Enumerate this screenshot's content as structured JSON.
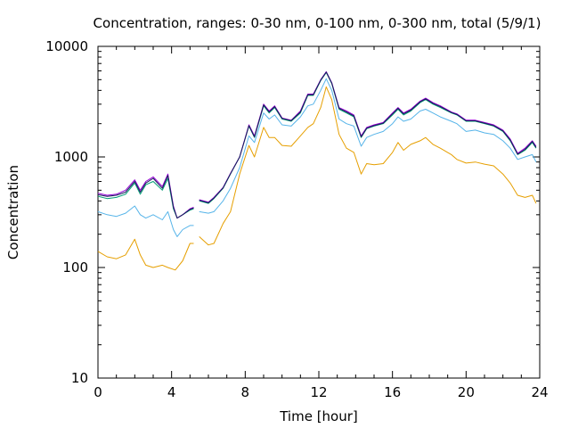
{
  "chart_data": {
    "type": "line",
    "title": "Concentration, ranges: 0-30 nm, 0-100 nm, 0-300 nm, total (5/9/1)",
    "xlabel": "Time [hour]",
    "ylabel": "Concentration",
    "xlim": [
      0,
      24
    ],
    "ylim": [
      10,
      10000
    ],
    "yscale": "log",
    "grid": false,
    "legend": "none",
    "x_ticks": [
      {
        "value": 0,
        "label": "0"
      },
      {
        "value": 4,
        "label": "4"
      },
      {
        "value": 8,
        "label": "8"
      },
      {
        "value": 12,
        "label": "12"
      },
      {
        "value": 16,
        "label": "16"
      },
      {
        "value": 20,
        "label": "20"
      },
      {
        "value": 24,
        "label": "24"
      }
    ],
    "y_ticks": [
      {
        "value": 10,
        "label": "10"
      },
      {
        "value": 100,
        "label": "100"
      },
      {
        "value": 1000,
        "label": "1000"
      },
      {
        "value": 10000,
        "label": "10000"
      }
    ],
    "series": [
      {
        "color": "#e69f00",
        "points": [
          [
            0,
            140
          ],
          [
            0.5,
            125
          ],
          [
            1,
            120
          ],
          [
            1.5,
            130
          ],
          [
            2,
            180
          ],
          [
            2.3,
            130
          ],
          [
            2.6,
            105
          ],
          [
            3,
            100
          ],
          [
            3.5,
            105
          ],
          [
            3.8,
            100
          ],
          [
            4.2,
            95
          ],
          [
            4.6,
            115
          ],
          [
            5,
            165
          ],
          [
            5.2,
            165
          ],
          [
            null,
            null
          ],
          [
            5.5,
            190
          ],
          [
            6,
            160
          ],
          [
            6.3,
            165
          ],
          [
            6.8,
            250
          ],
          [
            7.2,
            320
          ],
          [
            7.7,
            700
          ],
          [
            8.2,
            1270
          ],
          [
            8.5,
            1000
          ],
          [
            9,
            1850
          ],
          [
            9.3,
            1500
          ],
          [
            9.6,
            1500
          ],
          [
            10,
            1270
          ],
          [
            10.5,
            1250
          ],
          [
            11,
            1550
          ],
          [
            11.4,
            1850
          ],
          [
            11.7,
            2000
          ],
          [
            12.1,
            2800
          ],
          [
            12.4,
            4300
          ],
          [
            12.7,
            3300
          ],
          [
            13.1,
            1600
          ],
          [
            13.5,
            1200
          ],
          [
            13.9,
            1100
          ],
          [
            14.3,
            700
          ],
          [
            14.6,
            870
          ],
          [
            15,
            850
          ],
          [
            15.5,
            870
          ],
          [
            16,
            1100
          ],
          [
            16.3,
            1350
          ],
          [
            16.6,
            1150
          ],
          [
            17,
            1300
          ],
          [
            17.5,
            1400
          ],
          [
            17.8,
            1500
          ],
          [
            18.2,
            1300
          ],
          [
            18.6,
            1200
          ],
          [
            19.2,
            1050
          ],
          [
            19.5,
            950
          ],
          [
            20,
            880
          ],
          [
            20.5,
            900
          ],
          [
            21,
            860
          ],
          [
            21.5,
            830
          ],
          [
            22,
            700
          ],
          [
            22.4,
            580
          ],
          [
            22.8,
            450
          ],
          [
            23.2,
            430
          ],
          [
            23.6,
            450
          ],
          [
            23.8,
            380
          ]
        ]
      },
      {
        "color": "#56b4e9",
        "points": [
          [
            0,
            320
          ],
          [
            0.5,
            300
          ],
          [
            1,
            290
          ],
          [
            1.5,
            310
          ],
          [
            2,
            360
          ],
          [
            2.3,
            300
          ],
          [
            2.6,
            280
          ],
          [
            3,
            300
          ],
          [
            3.5,
            270
          ],
          [
            3.8,
            320
          ],
          [
            4.1,
            220
          ],
          [
            4.3,
            190
          ],
          [
            4.6,
            220
          ],
          [
            5,
            240
          ],
          [
            5.2,
            240
          ],
          [
            null,
            null
          ],
          [
            5.5,
            320
          ],
          [
            6,
            310
          ],
          [
            6.3,
            320
          ],
          [
            6.8,
            400
          ],
          [
            7.2,
            520
          ],
          [
            7.7,
            800
          ],
          [
            8.2,
            1550
          ],
          [
            8.5,
            1350
          ],
          [
            9,
            2500
          ],
          [
            9.3,
            2200
          ],
          [
            9.6,
            2400
          ],
          [
            10,
            1950
          ],
          [
            10.5,
            1900
          ],
          [
            11,
            2300
          ],
          [
            11.4,
            2900
          ],
          [
            11.7,
            3000
          ],
          [
            12.1,
            4000
          ],
          [
            12.4,
            5100
          ],
          [
            12.7,
            4000
          ],
          [
            13.1,
            2200
          ],
          [
            13.5,
            2000
          ],
          [
            13.9,
            1900
          ],
          [
            14.3,
            1250
          ],
          [
            14.6,
            1500
          ],
          [
            15,
            1600
          ],
          [
            15.5,
            1700
          ],
          [
            16,
            2000
          ],
          [
            16.3,
            2300
          ],
          [
            16.6,
            2100
          ],
          [
            17,
            2200
          ],
          [
            17.5,
            2600
          ],
          [
            17.8,
            2700
          ],
          [
            18.2,
            2500
          ],
          [
            18.6,
            2300
          ],
          [
            19.2,
            2100
          ],
          [
            19.5,
            2000
          ],
          [
            20,
            1700
          ],
          [
            20.5,
            1750
          ],
          [
            21,
            1650
          ],
          [
            21.5,
            1600
          ],
          [
            22,
            1400
          ],
          [
            22.4,
            1200
          ],
          [
            22.8,
            950
          ],
          [
            23.2,
            1000
          ],
          [
            23.6,
            1050
          ],
          [
            23.8,
            900
          ]
        ]
      },
      {
        "color": "#009e73",
        "points": [
          [
            0,
            440
          ],
          [
            0.5,
            420
          ],
          [
            1,
            430
          ],
          [
            1.5,
            460
          ],
          [
            2,
            580
          ],
          [
            2.3,
            460
          ],
          [
            2.6,
            560
          ],
          [
            3,
            600
          ],
          [
            3.5,
            500
          ],
          [
            3.8,
            640
          ],
          [
            4.1,
            340
          ],
          [
            4.3,
            280
          ],
          [
            4.6,
            300
          ],
          [
            5,
            330
          ],
          [
            5.2,
            340
          ],
          [
            null,
            null
          ],
          [
            5.5,
            400
          ],
          [
            6,
            380
          ],
          [
            6.3,
            420
          ],
          [
            6.8,
            520
          ],
          [
            7.2,
            700
          ],
          [
            7.7,
            1000
          ],
          [
            8.2,
            1900
          ],
          [
            8.5,
            1500
          ],
          [
            9,
            2900
          ],
          [
            9.3,
            2500
          ],
          [
            9.6,
            2800
          ],
          [
            10,
            2200
          ],
          [
            10.5,
            2100
          ],
          [
            11,
            2500
          ],
          [
            11.4,
            3600
          ],
          [
            11.7,
            3600
          ],
          [
            12.1,
            4900
          ],
          [
            12.4,
            5800
          ],
          [
            12.7,
            4600
          ],
          [
            13.1,
            2700
          ],
          [
            13.5,
            2500
          ],
          [
            13.9,
            2300
          ],
          [
            14.3,
            1500
          ],
          [
            14.6,
            1800
          ],
          [
            15,
            1900
          ],
          [
            15.5,
            2000
          ],
          [
            16,
            2400
          ],
          [
            16.3,
            2700
          ],
          [
            16.6,
            2400
          ],
          [
            17,
            2600
          ],
          [
            17.5,
            3100
          ],
          [
            17.8,
            3300
          ],
          [
            18.2,
            3000
          ],
          [
            18.6,
            2800
          ],
          [
            19.2,
            2500
          ],
          [
            19.5,
            2400
          ],
          [
            20,
            2100
          ],
          [
            20.5,
            2100
          ],
          [
            21,
            2000
          ],
          [
            21.5,
            1900
          ],
          [
            22,
            1700
          ],
          [
            22.4,
            1400
          ],
          [
            22.8,
            1050
          ],
          [
            23.2,
            1150
          ],
          [
            23.6,
            1350
          ],
          [
            23.8,
            1200
          ]
        ]
      },
      {
        "color": "#9400d3",
        "points": [
          [
            0,
            470
          ],
          [
            0.5,
            450
          ],
          [
            1,
            460
          ],
          [
            1.5,
            500
          ],
          [
            2,
            620
          ],
          [
            2.3,
            500
          ],
          [
            2.6,
            600
          ],
          [
            3,
            660
          ],
          [
            3.5,
            540
          ],
          [
            3.8,
            700
          ],
          [
            4.1,
            360
          ],
          [
            4.3,
            280
          ],
          [
            4.6,
            300
          ],
          [
            5,
            340
          ],
          [
            5.2,
            350
          ],
          [
            null,
            null
          ],
          [
            5.5,
            410
          ],
          [
            6,
            390
          ],
          [
            6.3,
            430
          ],
          [
            6.8,
            530
          ],
          [
            7.2,
            710
          ],
          [
            7.7,
            1000
          ],
          [
            8.2,
            1950
          ],
          [
            8.5,
            1550
          ],
          [
            9,
            3000
          ],
          [
            9.3,
            2600
          ],
          [
            9.6,
            2900
          ],
          [
            10,
            2250
          ],
          [
            10.5,
            2150
          ],
          [
            11,
            2600
          ],
          [
            11.4,
            3700
          ],
          [
            11.7,
            3700
          ],
          [
            12.1,
            5000
          ],
          [
            12.4,
            5900
          ],
          [
            12.7,
            4700
          ],
          [
            13.1,
            2800
          ],
          [
            13.5,
            2600
          ],
          [
            13.9,
            2400
          ],
          [
            14.3,
            1550
          ],
          [
            14.6,
            1850
          ],
          [
            15,
            1950
          ],
          [
            15.5,
            2050
          ],
          [
            16,
            2500
          ],
          [
            16.3,
            2800
          ],
          [
            16.6,
            2500
          ],
          [
            17,
            2700
          ],
          [
            17.5,
            3200
          ],
          [
            17.8,
            3400
          ],
          [
            18.2,
            3100
          ],
          [
            18.6,
            2900
          ],
          [
            19.2,
            2550
          ],
          [
            19.5,
            2450
          ],
          [
            20,
            2150
          ],
          [
            20.5,
            2150
          ],
          [
            21,
            2050
          ],
          [
            21.5,
            1950
          ],
          [
            22,
            1750
          ],
          [
            22.4,
            1450
          ],
          [
            22.8,
            1080
          ],
          [
            23.2,
            1200
          ],
          [
            23.6,
            1400
          ],
          [
            23.8,
            1250
          ]
        ]
      },
      {
        "color": "#1a1a5e",
        "points": [
          [
            0,
            455
          ],
          [
            0.5,
            440
          ],
          [
            1,
            450
          ],
          [
            1.5,
            480
          ],
          [
            2,
            600
          ],
          [
            2.3,
            480
          ],
          [
            2.6,
            580
          ],
          [
            3,
            640
          ],
          [
            3.5,
            520
          ],
          [
            3.8,
            680
          ],
          [
            4.1,
            350
          ],
          [
            4.3,
            280
          ],
          [
            4.6,
            300
          ],
          [
            5,
            335
          ],
          [
            5.2,
            345
          ],
          [
            null,
            null
          ],
          [
            5.5,
            405
          ],
          [
            6,
            385
          ],
          [
            6.3,
            425
          ],
          [
            6.8,
            525
          ],
          [
            7.2,
            705
          ],
          [
            7.7,
            1000
          ],
          [
            8.2,
            1920
          ],
          [
            8.5,
            1520
          ],
          [
            9,
            2950
          ],
          [
            9.3,
            2550
          ],
          [
            9.6,
            2850
          ],
          [
            10,
            2230
          ],
          [
            10.5,
            2130
          ],
          [
            11,
            2550
          ],
          [
            11.4,
            3650
          ],
          [
            11.7,
            3650
          ],
          [
            12.1,
            4950
          ],
          [
            12.4,
            5850
          ],
          [
            12.7,
            4650
          ],
          [
            13.1,
            2750
          ],
          [
            13.5,
            2550
          ],
          [
            13.9,
            2350
          ],
          [
            14.3,
            1520
          ],
          [
            14.6,
            1820
          ],
          [
            15,
            1920
          ],
          [
            15.5,
            2020
          ],
          [
            16,
            2450
          ],
          [
            16.3,
            2750
          ],
          [
            16.6,
            2450
          ],
          [
            17,
            2650
          ],
          [
            17.5,
            3150
          ],
          [
            17.8,
            3350
          ],
          [
            18.2,
            3050
          ],
          [
            18.6,
            2850
          ],
          [
            19.2,
            2520
          ],
          [
            19.5,
            2420
          ],
          [
            20,
            2120
          ],
          [
            20.5,
            2120
          ],
          [
            21,
            2020
          ],
          [
            21.5,
            1920
          ],
          [
            22,
            1720
          ],
          [
            22.4,
            1420
          ],
          [
            22.8,
            1060
          ],
          [
            23.2,
            1170
          ],
          [
            23.6,
            1380
          ],
          [
            23.8,
            1220
          ]
        ]
      }
    ]
  }
}
